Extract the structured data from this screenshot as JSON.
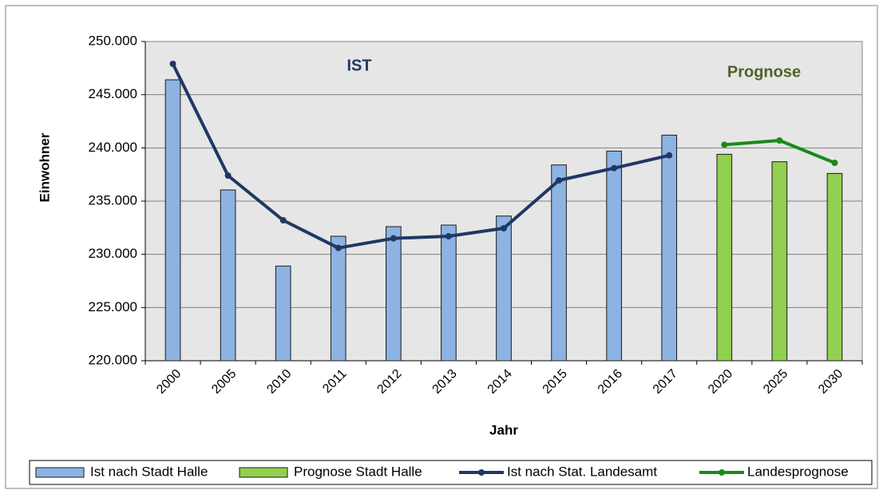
{
  "chart_data": {
    "type": "bar_line",
    "annotations": [
      "IST",
      "Prognose"
    ],
    "x_label": "Jahr",
    "y_label": "Einwohner",
    "categories": [
      "2000",
      "2005",
      "2010",
      "2011",
      "2012",
      "2013",
      "2014",
      "2015",
      "2016",
      "2017",
      "2020",
      "2025",
      "2030"
    ],
    "series": [
      {
        "name": "Ist nach Stadt Halle",
        "kind": "bar",
        "color": "#8db3e2",
        "values": [
          246400,
          236050,
          228900,
          231700,
          232600,
          232750,
          233600,
          238400,
          239700,
          241200,
          null,
          null,
          null
        ]
      },
      {
        "name": "Prognose Stadt Halle",
        "kind": "bar",
        "color": "#92d050",
        "values": [
          null,
          null,
          null,
          null,
          null,
          null,
          null,
          null,
          null,
          null,
          239400,
          238700,
          237600
        ]
      },
      {
        "name": "Ist nach Stat. Landesamt",
        "kind": "line",
        "color": "#1f3864",
        "values": [
          247900,
          237400,
          233200,
          230600,
          231500,
          231700,
          232450,
          236950,
          238100,
          239300,
          null,
          null,
          null
        ]
      },
      {
        "name": "Landesprognose",
        "kind": "line",
        "color": "#1a8a1a",
        "values": [
          null,
          null,
          null,
          null,
          null,
          null,
          null,
          null,
          null,
          null,
          240300,
          240700,
          238600
        ]
      }
    ],
    "ylim": [
      220000,
      250000
    ],
    "yticks": [
      {
        "value": 220000,
        "label": "220.000"
      },
      {
        "value": 225000,
        "label": "225.000"
      },
      {
        "value": 230000,
        "label": "230.000"
      },
      {
        "value": 235000,
        "label": "235.000"
      },
      {
        "value": 240000,
        "label": "240.000"
      },
      {
        "value": 245000,
        "label": "245.000"
      },
      {
        "value": 250000,
        "label": "250.000"
      }
    ],
    "grid": true,
    "legend": "bottom"
  }
}
